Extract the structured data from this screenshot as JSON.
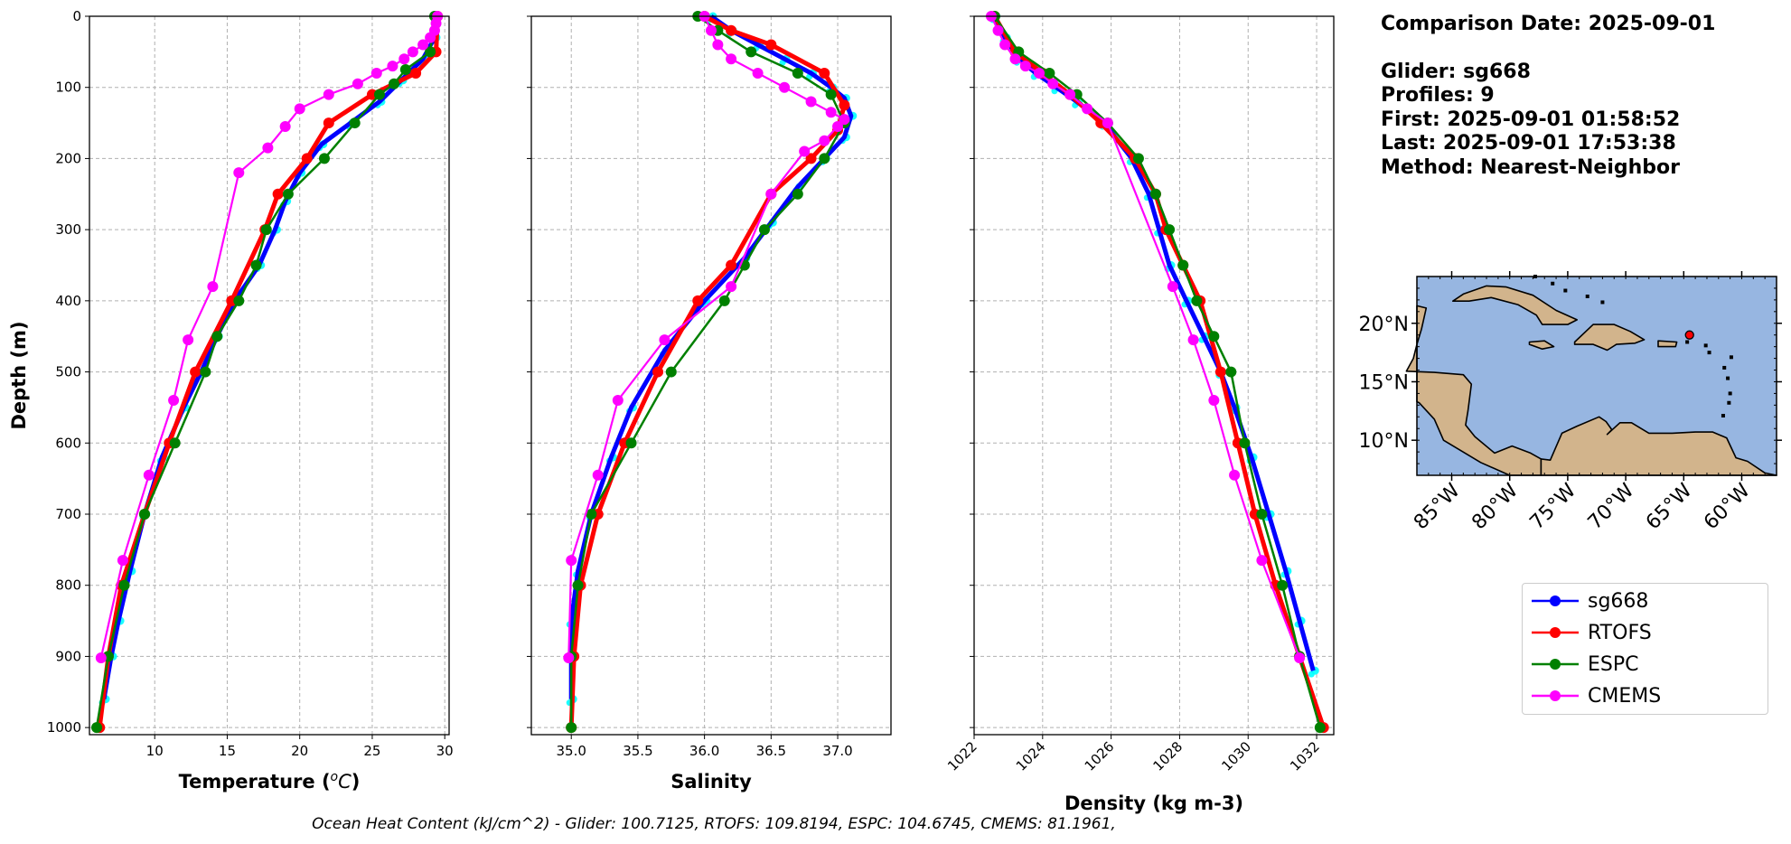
{
  "header": {
    "comparison_date": "Comparison Date: 2025-09-01",
    "glider": "Glider: sg668",
    "profiles": "Profiles: 9",
    "first": "First: 2025-09-01 01:58:52",
    "last": "Last: 2025-09-01 17:53:38",
    "method": "Method: Nearest-Neighbor"
  },
  "footer": "Ocean Heat Content (kJ/cm^2) - Glider: 100.7125,  RTOFS: 109.8194,  ESPC: 104.6745,  CMEMS: 81.1961,",
  "colors": {
    "sg668": "#0000ff",
    "RTOFS": "#ff0000",
    "ESPC": "#008000",
    "CMEMS": "#ff00ff",
    "glider_points": "#00ffff",
    "land": "#d2b48c",
    "ocean": "#97b6e1"
  },
  "legend": [
    "sg668",
    "RTOFS",
    "ESPC",
    "CMEMS"
  ],
  "map": {
    "lat_ticks": [
      "10°N",
      "15°N",
      "20°N"
    ],
    "lon_ticks": [
      "85°W",
      "80°W",
      "75°W",
      "70°W",
      "65°W",
      "60°W"
    ],
    "lon_range": [
      -88,
      -57
    ],
    "lat_range": [
      7,
      24
    ],
    "glider_position": {
      "lon": -64.5,
      "lat": 19.0
    }
  },
  "chart_data": [
    {
      "type": "line",
      "xlabel": "Temperature ($^oC$)",
      "ylabel": "Depth (m)",
      "xlim": [
        5.5,
        30.3
      ],
      "ylim": [
        1010,
        0
      ],
      "xticks": [
        10,
        15,
        20,
        25,
        30
      ],
      "yticks": [
        0,
        100,
        200,
        300,
        400,
        500,
        600,
        700,
        800,
        900,
        1000
      ],
      "series": [
        {
          "name": "sg668",
          "x": [
            29.4,
            29.3,
            28.5,
            27.0,
            25.5,
            23.5,
            21.5,
            20.0,
            19.0,
            18.3,
            17.2,
            15.5,
            14.3,
            13.2,
            12.0,
            10.5,
            9.3,
            8.3,
            7.5,
            7.0,
            6.5
          ],
          "y": [
            0,
            30,
            60,
            90,
            120,
            150,
            180,
            220,
            260,
            300,
            350,
            400,
            450,
            500,
            550,
            620,
            700,
            780,
            850,
            900,
            960
          ]
        },
        {
          "name": "RTOFS",
          "x": [
            29.5,
            29.4,
            28.0,
            25.0,
            22.0,
            20.5,
            18.5,
            17.6,
            15.3,
            12.8,
            11.0,
            9.3,
            7.7,
            6.8,
            6.2
          ],
          "y": [
            0,
            50,
            80,
            110,
            150,
            200,
            250,
            300,
            400,
            500,
            600,
            700,
            800,
            900,
            1000
          ]
        },
        {
          "name": "ESPC",
          "x": [
            29.3,
            29.0,
            27.3,
            26.5,
            25.5,
            23.8,
            21.7,
            19.2,
            17.7,
            17.0,
            15.8,
            14.3,
            13.5,
            11.4,
            9.3,
            7.9,
            6.8,
            6.0
          ],
          "y": [
            0,
            50,
            75,
            95,
            110,
            150,
            200,
            250,
            300,
            350,
            400,
            450,
            500,
            600,
            700,
            800,
            900,
            1000
          ]
        },
        {
          "name": "CMEMS",
          "x": [
            29.5,
            29.4,
            29.3,
            29.0,
            28.5,
            27.8,
            27.2,
            26.4,
            25.3,
            24.0,
            22.0,
            20.0,
            19.0,
            17.8,
            15.8,
            14.0,
            12.3,
            11.3,
            9.6,
            7.8,
            6.3
          ],
          "y": [
            0,
            10,
            20,
            30,
            40,
            50,
            60,
            70,
            80,
            95,
            110,
            130,
            155,
            185,
            220,
            380,
            455,
            540,
            645,
            765,
            902
          ]
        }
      ]
    },
    {
      "type": "line",
      "xlabel": "Salinity",
      "xlim": [
        34.7,
        37.4
      ],
      "ylim": [
        1010,
        0
      ],
      "xticks": [
        35.0,
        35.5,
        36.0,
        36.5,
        37.0
      ],
      "series": [
        {
          "name": "sg668",
          "x": [
            36.05,
            36.2,
            36.4,
            36.6,
            36.8,
            36.95,
            37.05,
            37.1,
            37.05,
            36.9,
            36.7,
            36.5,
            36.3,
            36.0,
            35.7,
            35.45,
            35.3,
            35.15,
            35.05,
            35.0,
            35.0,
            35.0
          ],
          "y": [
            0,
            20,
            40,
            60,
            80,
            100,
            115,
            140,
            170,
            200,
            240,
            290,
            340,
            400,
            470,
            550,
            620,
            700,
            780,
            850,
            900,
            960
          ]
        },
        {
          "name": "RTOFS",
          "x": [
            36.0,
            36.2,
            36.5,
            36.9,
            37.05,
            37.0,
            36.8,
            36.5,
            36.2,
            35.95,
            35.65,
            35.4,
            35.2,
            35.07,
            35.02,
            35.0
          ],
          "y": [
            0,
            20,
            40,
            80,
            125,
            160,
            200,
            250,
            350,
            400,
            500,
            600,
            700,
            800,
            900,
            1000
          ]
        },
        {
          "name": "ESPC",
          "x": [
            35.95,
            36.1,
            36.35,
            36.7,
            36.95,
            37.05,
            36.9,
            36.7,
            36.45,
            36.3,
            36.15,
            35.75,
            35.45,
            35.15,
            35.05,
            35.0,
            35.0
          ],
          "y": [
            0,
            20,
            50,
            80,
            110,
            150,
            200,
            250,
            300,
            350,
            400,
            500,
            600,
            700,
            800,
            900,
            1000
          ]
        },
        {
          "name": "CMEMS",
          "x": [
            36.0,
            36.05,
            36.1,
            36.2,
            36.4,
            36.6,
            36.8,
            36.95,
            37.05,
            37.0,
            36.9,
            36.75,
            36.5,
            36.2,
            35.7,
            35.35,
            35.2,
            35.0,
            34.98
          ],
          "y": [
            0,
            20,
            40,
            60,
            80,
            100,
            120,
            135,
            145,
            155,
            175,
            190,
            250,
            380,
            455,
            540,
            645,
            765,
            902
          ]
        }
      ]
    },
    {
      "type": "line",
      "xlabel": "Density (kg m-3)",
      "xlim": [
        1022.0,
        1032.5
      ],
      "ylim": [
        1010,
        0
      ],
      "xticks": [
        1022,
        1024,
        1026,
        1028,
        1030,
        1032
      ],
      "series": [
        {
          "name": "sg668",
          "x": [
            1022.6,
            1022.9,
            1023.3,
            1023.8,
            1024.4,
            1025.0,
            1025.8,
            1026.6,
            1027.1,
            1027.4,
            1027.7,
            1028.2,
            1028.7,
            1029.2,
            1029.6,
            1030.1,
            1030.6,
            1031.1,
            1031.5,
            1031.9
          ],
          "y": [
            0,
            30,
            60,
            80,
            100,
            120,
            150,
            200,
            250,
            300,
            350,
            400,
            450,
            500,
            550,
            620,
            700,
            780,
            850,
            920
          ]
        },
        {
          "name": "RTOFS",
          "x": [
            1022.6,
            1023.2,
            1024.0,
            1024.8,
            1025.7,
            1026.7,
            1027.3,
            1027.6,
            1028.1,
            1028.6,
            1029.2,
            1029.7,
            1030.2,
            1030.8,
            1031.5,
            1032.2
          ],
          "y": [
            0,
            50,
            80,
            110,
            150,
            200,
            250,
            300,
            350,
            400,
            500,
            600,
            700,
            800,
            900,
            1000
          ]
        },
        {
          "name": "ESPC",
          "x": [
            1022.6,
            1023.3,
            1024.2,
            1025.0,
            1025.9,
            1026.8,
            1027.3,
            1027.7,
            1028.1,
            1028.5,
            1029.0,
            1029.5,
            1029.9,
            1030.4,
            1031.0,
            1031.5,
            1032.1
          ],
          "y": [
            0,
            50,
            80,
            110,
            150,
            200,
            250,
            300,
            350,
            400,
            450,
            500,
            600,
            700,
            800,
            900,
            1000
          ]
        },
        {
          "name": "CMEMS",
          "x": [
            1022.5,
            1022.7,
            1022.9,
            1023.2,
            1023.5,
            1023.9,
            1024.3,
            1024.8,
            1025.3,
            1025.9,
            1027.8,
            1028.4,
            1029.0,
            1029.6,
            1030.4,
            1031.5
          ],
          "y": [
            0,
            20,
            40,
            60,
            70,
            80,
            95,
            110,
            130,
            150,
            380,
            455,
            540,
            645,
            765,
            902
          ]
        }
      ]
    }
  ]
}
